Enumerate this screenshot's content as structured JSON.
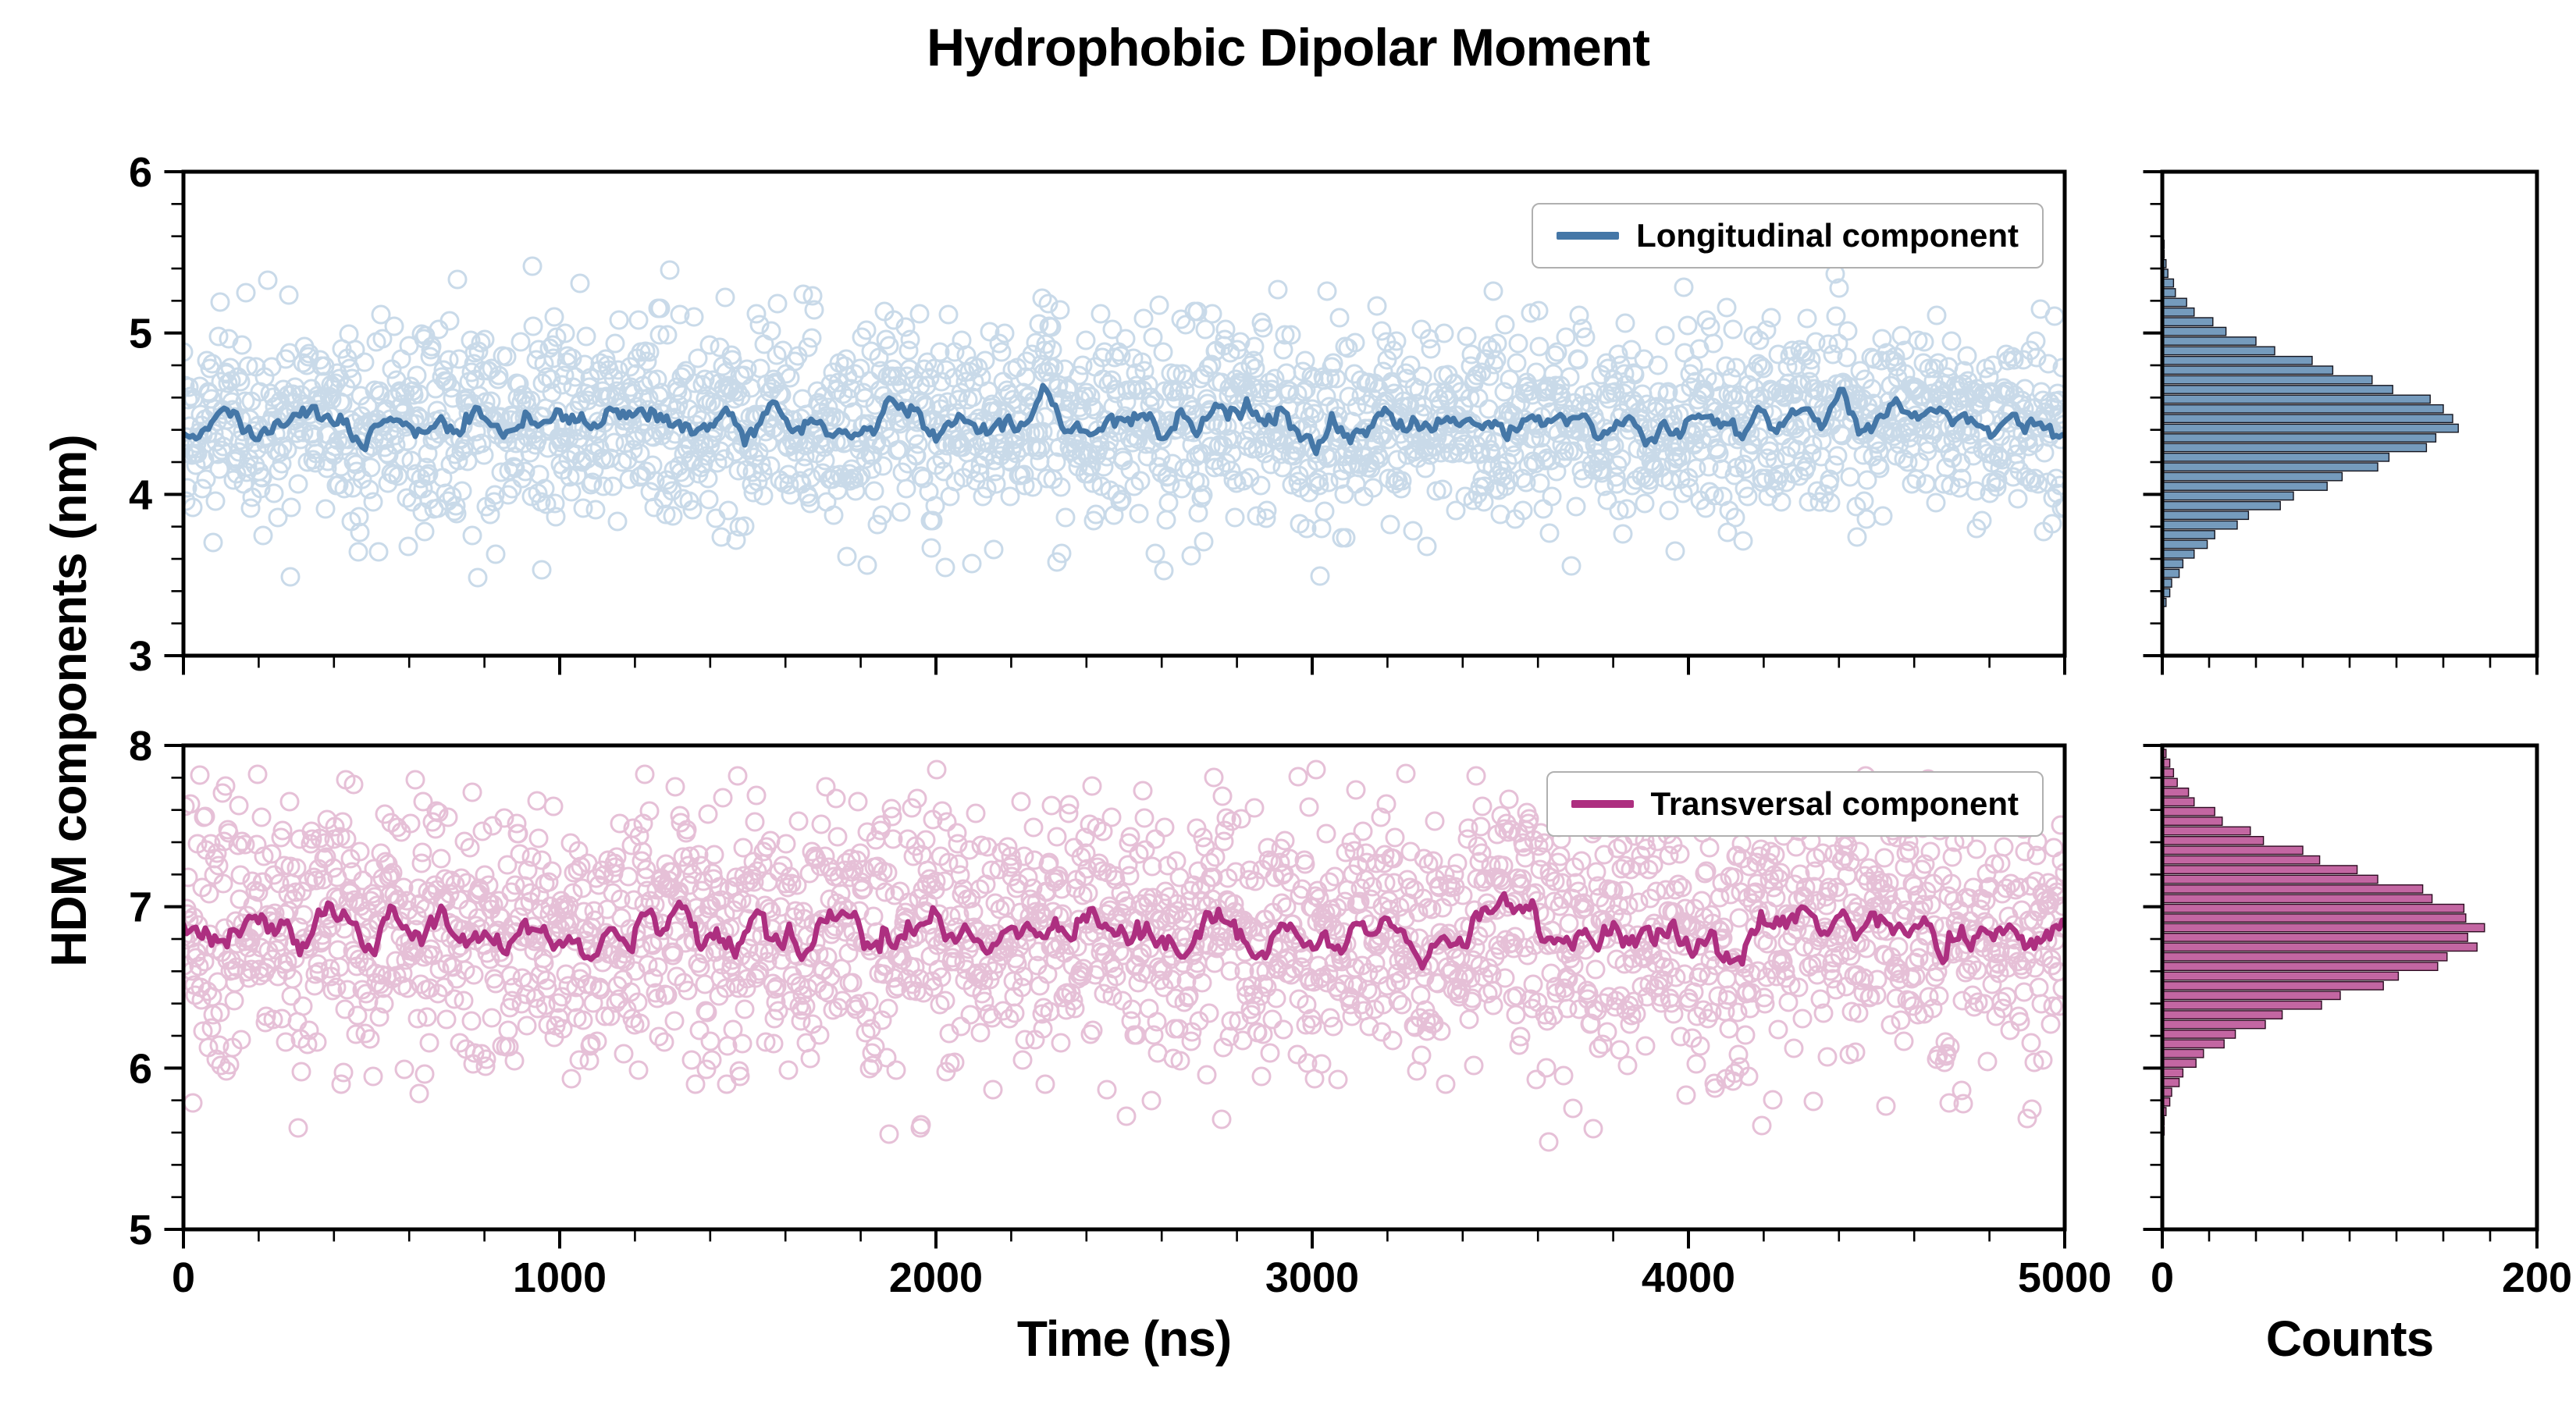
{
  "title": "Hydrophobic Dipolar Moment",
  "ylabel": "HDM components (nm)",
  "xlabel_main": "Time (ns)",
  "xlabel_hist": "Counts",
  "legend": {
    "longitudinal": "Longitudinal component",
    "transversal": "Transversal component"
  },
  "colors": {
    "longitudinal_line": "#4577a7",
    "longitudinal_scatter": "#7ea6cb",
    "longitudinal_hist_fill": "#5d89b1",
    "transversal_line": "#ad2f80",
    "transversal_scatter": "#c4699f",
    "transversal_hist_fill": "#b94b92",
    "axis": "#000000",
    "legend_border": "#b0b0b0"
  },
  "chart_data": [
    {
      "id": "longitudinal",
      "type": "scatter",
      "legend": "Longitudinal component",
      "x_range": [
        0,
        5000
      ],
      "x_ticks": [
        0,
        1000,
        2000,
        3000,
        4000,
        5000
      ],
      "x_minor_step": 200,
      "y_range": [
        3,
        6
      ],
      "y_ticks": [
        3,
        4,
        5,
        6
      ],
      "y_minor_step": 0.2,
      "n_points": 2400,
      "y_mean": 4.45,
      "y_std": 0.31,
      "y_clip": [
        3.25,
        5.5
      ],
      "line": "running-mean-window-25",
      "seed": 20,
      "color": "#4577a7",
      "scatter_color": "#7ea6cb",
      "scatter_opacity": 0.42
    },
    {
      "id": "transversal",
      "type": "scatter",
      "legend": "Transversal component",
      "x_range": [
        0,
        5000
      ],
      "x_ticks": [
        0,
        1000,
        2000,
        3000,
        4000,
        5000
      ],
      "x_minor_step": 200,
      "y_range": [
        5,
        8
      ],
      "y_ticks": [
        5,
        6,
        7,
        8
      ],
      "y_minor_step": 0.2,
      "n_points": 2400,
      "y_mean": 6.85,
      "y_std": 0.4,
      "y_clip": [
        5.15,
        7.85
      ],
      "line": "running-mean-window-25",
      "seed": 77,
      "color": "#ad2f80",
      "scatter_color": "#c4699f",
      "scatter_opacity": 0.42
    },
    {
      "id": "longitudinal-hist",
      "type": "histogram",
      "orientation": "horizontal",
      "x_range": [
        0,
        200
      ],
      "x_ticks": [
        0,
        200
      ],
      "x_minor_step": 25,
      "bin_start": 3.33,
      "bin_width": 0.06,
      "counts": [
        2,
        4,
        5,
        9,
        11,
        17,
        24,
        28,
        40,
        46,
        63,
        70,
        88,
        96,
        115,
        121,
        141,
        146,
        158,
        155,
        150,
        143,
        123,
        112,
        91,
        80,
        60,
        50,
        34,
        27,
        17,
        13,
        7,
        6,
        3,
        2,
        1,
        1
      ],
      "fill": "#5d89b1",
      "edge": "#14141e",
      "opacity": 0.85
    },
    {
      "id": "transversal-hist",
      "type": "histogram",
      "orientation": "horizontal",
      "x_range": [
        0,
        200
      ],
      "x_ticks": [
        0,
        200
      ],
      "x_minor_step": 25,
      "bin_start": 5.61,
      "bin_width": 0.06,
      "counts": [
        1,
        1,
        2,
        4,
        5,
        9,
        11,
        18,
        22,
        33,
        39,
        55,
        64,
        85,
        95,
        118,
        126,
        147,
        152,
        168,
        163,
        172,
        162,
        161,
        144,
        139,
        115,
        104,
        84,
        75,
        54,
        47,
        32,
        28,
        17,
        14,
        8,
        6,
        4,
        2
      ],
      "fill": "#b94b92",
      "edge": "#2e0c22",
      "opacity": 0.85
    }
  ]
}
